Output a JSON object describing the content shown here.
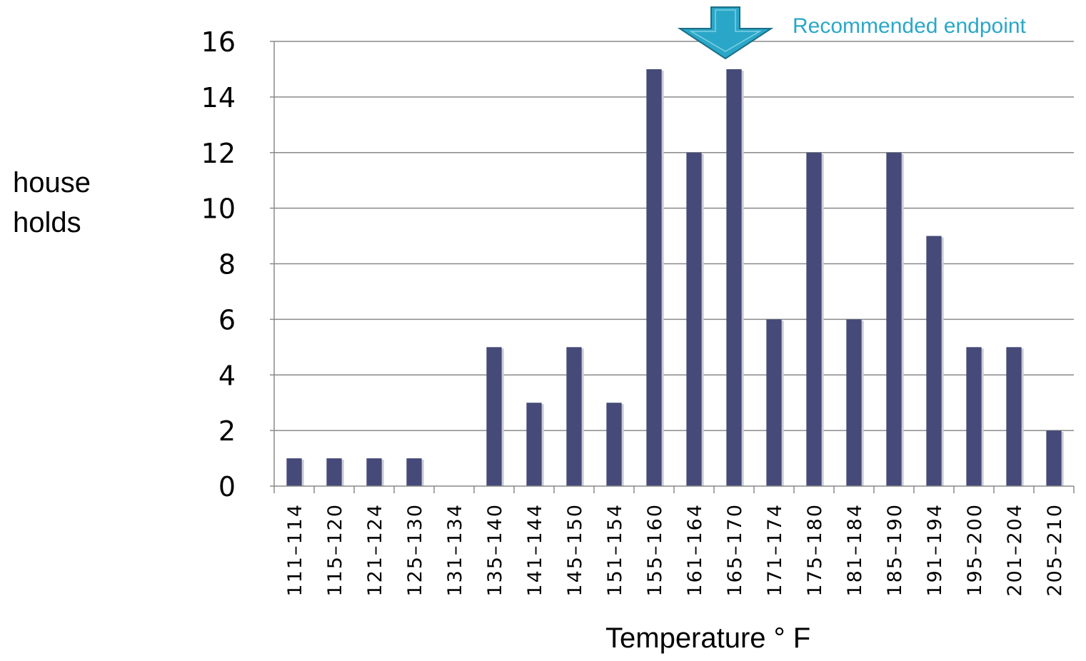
{
  "chart_data": {
    "type": "bar",
    "categories": [
      "111–114",
      "115–120",
      "121–124",
      "125–130",
      "131–134",
      "135–140",
      "141–144",
      "145–150",
      "151–154",
      "155–160",
      "161–164",
      "165–170",
      "171–174",
      "175–180",
      "181–184",
      "185–190",
      "191–194",
      "195–200",
      "201–204",
      "205–210"
    ],
    "values": [
      1,
      1,
      1,
      1,
      0,
      5,
      3,
      5,
      3,
      15,
      12,
      15,
      6,
      12,
      6,
      12,
      9,
      5,
      5,
      2
    ],
    "ylim": [
      0,
      16
    ],
    "yticks": [
      0,
      2,
      4,
      6,
      8,
      10,
      12,
      14,
      16
    ],
    "ylabel_lines": [
      "house",
      "holds"
    ],
    "xlabel": "Temperature ° F",
    "grid": true,
    "colors": {
      "bar": "#454a78",
      "grid": "#8a8a8a",
      "arrow": "#2aa7c8",
      "annotation": "#2aa7c8"
    },
    "annotation": {
      "text": "Recommended endpoint",
      "category": "165–170",
      "icon": "down-arrow-icon"
    }
  }
}
